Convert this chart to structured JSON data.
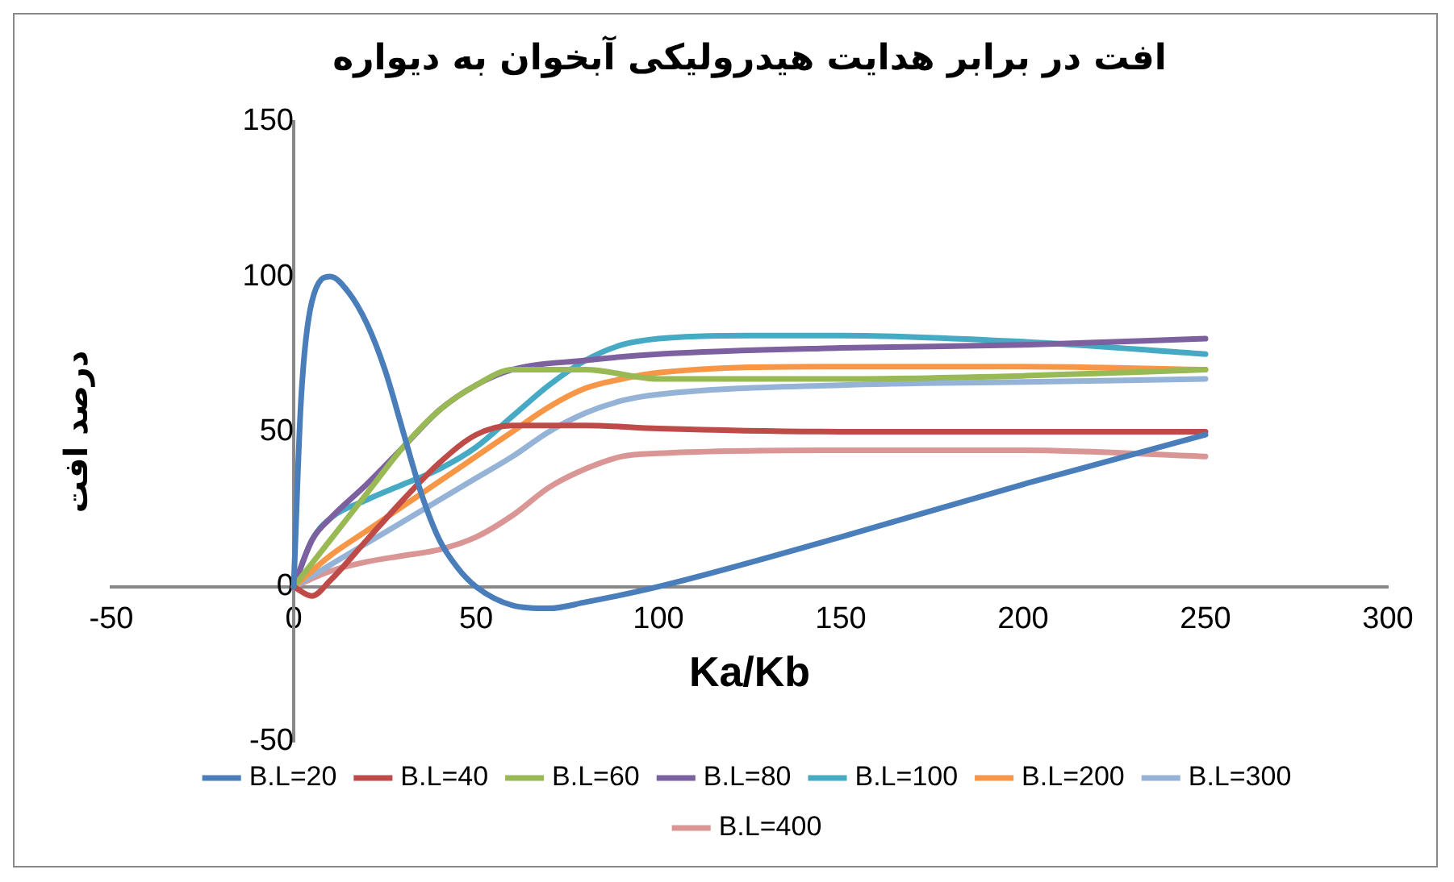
{
  "chart_data": {
    "type": "line",
    "title": "افت در برابر هدایت هیدرولیکی آبخوان به دیواره",
    "xlabel": "Ka/Kb",
    "ylabel": "درصد افت",
    "xlim": [
      -50,
      300
    ],
    "xticks": [
      -50,
      0,
      50,
      100,
      150,
      200,
      250,
      300
    ],
    "ylim": [
      -50,
      150
    ],
    "yticks": [
      -50,
      0,
      50,
      100,
      150
    ],
    "grid": false,
    "legend": "bottom",
    "marker": "none",
    "line_style": "solid",
    "series": [
      {
        "name": "B.L=20",
        "color": "#4a7ebb",
        "x": [
          0,
          2,
          5,
          10,
          15,
          20,
          25,
          30,
          35,
          40,
          45,
          50,
          60,
          70,
          80,
          100,
          150,
          200,
          250
        ],
        "values": [
          0,
          60,
          92,
          100,
          95,
          85,
          70,
          50,
          30,
          15,
          6,
          0,
          -6,
          -7,
          -5,
          0,
          16,
          33,
          49
        ]
      },
      {
        "name": "B.L=40",
        "color": "#be4b48",
        "x": [
          0,
          5,
          10,
          20,
          30,
          40,
          50,
          60,
          80,
          100,
          150,
          250
        ],
        "values": [
          0,
          -3,
          2,
          15,
          28,
          40,
          49,
          52,
          52,
          51,
          50,
          50
        ]
      },
      {
        "name": "B.L=60",
        "color": "#98b954",
        "x": [
          0,
          10,
          20,
          30,
          40,
          50,
          60,
          80,
          100,
          150,
          200,
          250
        ],
        "values": [
          0,
          15,
          30,
          45,
          57,
          65,
          70,
          70,
          67,
          67,
          68,
          70
        ]
      },
      {
        "name": "B.L=80",
        "color": "#7d60a0",
        "x": [
          0,
          5,
          10,
          20,
          30,
          40,
          50,
          60,
          80,
          100,
          150,
          200,
          250
        ],
        "values": [
          0,
          15,
          22,
          33,
          45,
          57,
          65,
          70,
          73,
          75,
          77,
          78,
          80
        ]
      },
      {
        "name": "B.L=100",
        "color": "#46aac5",
        "x": [
          0,
          5,
          10,
          20,
          30,
          40,
          50,
          60,
          70,
          80,
          90,
          100,
          125,
          150,
          200,
          250
        ],
        "values": [
          0,
          15,
          22,
          28,
          33,
          38,
          45,
          55,
          65,
          73,
          78,
          80,
          81,
          81,
          79,
          75
        ]
      },
      {
        "name": "B.L=200",
        "color": "#f79646",
        "x": [
          0,
          10,
          20,
          30,
          40,
          50,
          60,
          70,
          80,
          90,
          100,
          150,
          200,
          250
        ],
        "values": [
          0,
          10,
          18,
          26,
          34,
          42,
          50,
          58,
          64,
          67,
          69,
          71,
          71,
          70
        ]
      },
      {
        "name": "B.L=300",
        "color": "#95b3d7",
        "x": [
          0,
          10,
          20,
          30,
          40,
          50,
          60,
          70,
          80,
          90,
          100,
          150,
          200,
          250
        ],
        "values": [
          0,
          7,
          14,
          21,
          28,
          35,
          42,
          50,
          56,
          60,
          62,
          65,
          66,
          67
        ]
      },
      {
        "name": "B.L=400",
        "color": "#d99694",
        "x": [
          0,
          10,
          20,
          30,
          40,
          50,
          60,
          70,
          80,
          90,
          100,
          150,
          200,
          250
        ],
        "values": [
          0,
          5,
          8,
          10,
          12,
          16,
          23,
          32,
          38,
          42,
          43,
          44,
          44,
          42
        ]
      }
    ]
  }
}
